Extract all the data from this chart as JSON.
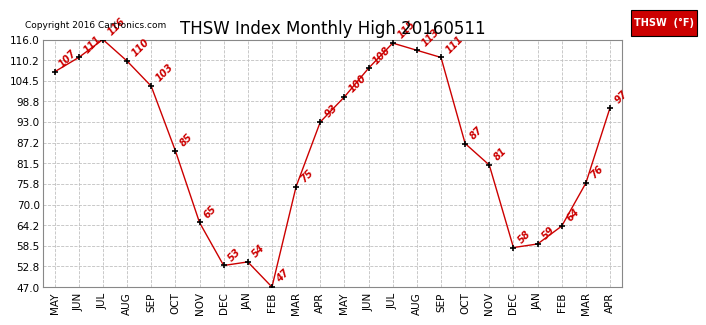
{
  "title": "THSW Index Monthly High 20160511",
  "x_labels": [
    "MAY",
    "JUN",
    "JUL",
    "AUG",
    "SEP",
    "OCT",
    "NOV",
    "DEC",
    "JAN",
    "FEB",
    "MAR",
    "APR",
    "MAY",
    "JUN",
    "JUL",
    "AUG",
    "SEP",
    "OCT",
    "NOV",
    "DEC",
    "JAN",
    "FEB",
    "MAR",
    "APR"
  ],
  "values": [
    107,
    111,
    116,
    110,
    103,
    85,
    65,
    53,
    54,
    47,
    75,
    93,
    100,
    108,
    115,
    113,
    111,
    87,
    81,
    58,
    59,
    64,
    76,
    97
  ],
  "y_ticks": [
    47.0,
    52.8,
    58.5,
    64.2,
    70.0,
    75.8,
    81.5,
    87.2,
    93.0,
    98.8,
    104.5,
    110.2,
    116.0
  ],
  "ylim": [
    47.0,
    116.0
  ],
  "line_color": "#cc0000",
  "marker_color": "#000000",
  "label_color": "#cc0000",
  "grid_color": "#c0c0c0",
  "bg_color": "#ffffff",
  "copyright_text": "Copyright 2016 Cartronics.com",
  "legend_label": "THSW  (°F)",
  "legend_bg": "#cc0000",
  "legend_text_color": "#ffffff",
  "title_fontsize": 12,
  "label_fontsize": 7,
  "tick_fontsize": 7.5,
  "copyright_fontsize": 6.5
}
